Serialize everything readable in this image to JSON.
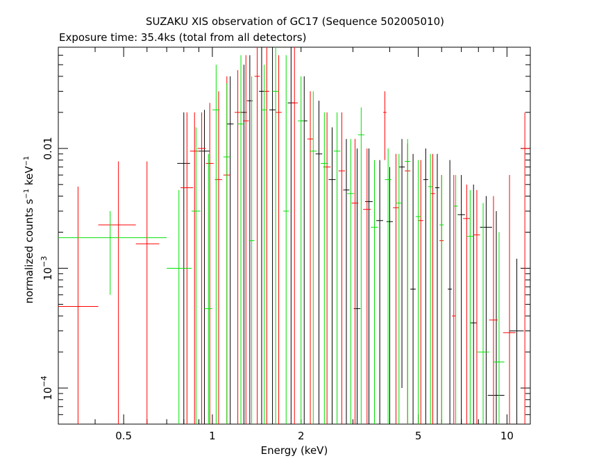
{
  "chart_data": {
    "type": "scatter",
    "title": "SUZAKU XIS observation of GC17 (Sequence 502005010)",
    "subtitle": "Exposure time: 35.4ks (total from all detectors)",
    "xlabel": "Energy (keV)",
    "ylabel": {
      "base": "normalized counts s",
      "exp1": "−1",
      "mid": " keV",
      "exp2": "−1"
    },
    "x_scale": "log",
    "y_scale": "log",
    "xlim": [
      0.3,
      12.0
    ],
    "ylim": [
      5e-05,
      0.07
    ],
    "x_ticks": [
      {
        "value": 0.5,
        "label": "0.5"
      },
      {
        "value": 1,
        "label": "1"
      },
      {
        "value": 2,
        "label": "2"
      },
      {
        "value": 5,
        "label": "5"
      },
      {
        "value": 10,
        "label": "10"
      }
    ],
    "y_ticks": [
      {
        "value": 0.0001,
        "base": "10",
        "exp": "−4"
      },
      {
        "value": 0.001,
        "base": "10",
        "exp": "−3"
      },
      {
        "value": 0.01,
        "base": "0.01",
        "exp": ""
      }
    ],
    "series": [
      {
        "color": "#000000",
        "points": [
          {
            "x": 0.8,
            "xlo": 0.76,
            "xhi": 0.84,
            "y": 0.0075,
            "ylo": 5e-05,
            "yhi": 0.02
          },
          {
            "x": 0.94,
            "xlo": 0.9,
            "xhi": 0.98,
            "y": 0.0095,
            "ylo": 5e-05,
            "yhi": 0.021
          },
          {
            "x": 1.15,
            "xlo": 1.12,
            "xhi": 1.18,
            "y": 0.016,
            "ylo": 5e-05,
            "yhi": 0.04
          },
          {
            "x": 1.28,
            "xlo": 1.25,
            "xhi": 1.31,
            "y": 0.02,
            "ylo": 5e-05,
            "yhi": 0.05
          },
          {
            "x": 1.34,
            "xlo": 1.31,
            "xhi": 1.37,
            "y": 0.025,
            "ylo": 5e-05,
            "yhi": 0.06
          },
          {
            "x": 1.47,
            "xlo": 1.44,
            "xhi": 1.5,
            "y": 0.03,
            "ylo": 5e-05,
            "yhi": 0.07
          },
          {
            "x": 1.6,
            "xlo": 1.56,
            "xhi": 1.64,
            "y": 0.021,
            "ylo": 5e-05,
            "yhi": 0.07
          },
          {
            "x": 1.85,
            "xlo": 1.8,
            "xhi": 1.9,
            "y": 0.024,
            "ylo": 5e-05,
            "yhi": 0.07
          },
          {
            "x": 2.05,
            "xlo": 2.0,
            "xhi": 2.1,
            "y": 0.017,
            "ylo": 5e-05,
            "yhi": 0.04
          },
          {
            "x": 2.3,
            "xlo": 2.24,
            "xhi": 2.36,
            "y": 0.009,
            "ylo": 5e-05,
            "yhi": 0.025
          },
          {
            "x": 2.55,
            "xlo": 2.48,
            "xhi": 2.62,
            "y": 0.0055,
            "ylo": 5e-05,
            "yhi": 0.015
          },
          {
            "x": 2.85,
            "xlo": 2.78,
            "xhi": 2.92,
            "y": 0.0045,
            "ylo": 5e-05,
            "yhi": 0.012
          },
          {
            "x": 3.1,
            "xlo": 3.02,
            "xhi": 3.18,
            "y": 0.00046,
            "ylo": 5e-05,
            "yhi": 0.01
          },
          {
            "x": 3.4,
            "xlo": 3.3,
            "xhi": 3.5,
            "y": 0.0036,
            "ylo": 5e-05,
            "yhi": 0.01
          },
          {
            "x": 3.7,
            "xlo": 3.6,
            "xhi": 3.8,
            "y": 0.0025,
            "ylo": 5e-05,
            "yhi": 0.008
          },
          {
            "x": 4.0,
            "xlo": 3.9,
            "xhi": 4.1,
            "y": 0.00245,
            "ylo": 5e-05,
            "yhi": 0.007
          },
          {
            "x": 4.4,
            "xlo": 4.3,
            "xhi": 4.5,
            "y": 0.007,
            "ylo": 0.0001,
            "yhi": 0.012
          },
          {
            "x": 4.8,
            "xlo": 4.7,
            "xhi": 4.9,
            "y": 0.00067,
            "ylo": 5e-05,
            "yhi": 0.009
          },
          {
            "x": 5.3,
            "xlo": 5.2,
            "xhi": 5.4,
            "y": 0.0055,
            "ylo": 5e-05,
            "yhi": 0.01
          },
          {
            "x": 5.8,
            "xlo": 5.7,
            "xhi": 5.9,
            "y": 0.0047,
            "ylo": 5e-05,
            "yhi": 0.009
          },
          {
            "x": 6.4,
            "xlo": 6.3,
            "xhi": 6.5,
            "y": 0.00067,
            "ylo": 5e-05,
            "yhi": 0.008
          },
          {
            "x": 7.0,
            "xlo": 6.8,
            "xhi": 7.2,
            "y": 0.0028,
            "ylo": 5e-05,
            "yhi": 0.006
          },
          {
            "x": 7.7,
            "xlo": 7.5,
            "xhi": 7.9,
            "y": 0.00035,
            "ylo": 5e-05,
            "yhi": 0.005
          },
          {
            "x": 8.5,
            "xlo": 8.1,
            "xhi": 8.9,
            "y": 0.0022,
            "ylo": 5e-05,
            "yhi": 0.004
          },
          {
            "x": 9.2,
            "xlo": 8.6,
            "xhi": 9.8,
            "y": 8.7e-05,
            "ylo": 5e-05,
            "yhi": 0.003
          },
          {
            "x": 10.8,
            "xlo": 10.2,
            "xhi": 11.4,
            "y": 0.0003,
            "ylo": 5e-05,
            "yhi": 0.0012
          }
        ]
      },
      {
        "color": "#ff0000",
        "points": [
          {
            "x": 0.35,
            "xlo": 0.3,
            "xhi": 0.41,
            "y": 0.00048,
            "ylo": 5e-05,
            "yhi": 0.0048
          },
          {
            "x": 0.48,
            "xlo": 0.41,
            "xhi": 0.55,
            "y": 0.0023,
            "ylo": 5e-05,
            "yhi": 0.0078
          },
          {
            "x": 0.6,
            "xlo": 0.55,
            "xhi": 0.66,
            "y": 0.0016,
            "ylo": 5e-05,
            "yhi": 0.0078
          },
          {
            "x": 0.82,
            "xlo": 0.78,
            "xhi": 0.86,
            "y": 0.0047,
            "ylo": 5e-05,
            "yhi": 0.02
          },
          {
            "x": 0.87,
            "xlo": 0.84,
            "xhi": 0.9,
            "y": 0.0095,
            "ylo": 5e-05,
            "yhi": 0.02
          },
          {
            "x": 0.92,
            "xlo": 0.89,
            "xhi": 0.95,
            "y": 0.01,
            "ylo": 5e-05,
            "yhi": 0.02
          },
          {
            "x": 0.98,
            "xlo": 0.95,
            "xhi": 1.01,
            "y": 0.0075,
            "ylo": 5e-05,
            "yhi": 0.024
          },
          {
            "x": 1.05,
            "xlo": 1.02,
            "xhi": 1.08,
            "y": 0.0055,
            "ylo": 5e-05,
            "yhi": 0.03
          },
          {
            "x": 1.12,
            "xlo": 1.09,
            "xhi": 1.15,
            "y": 0.006,
            "ylo": 5e-05,
            "yhi": 0.04
          },
          {
            "x": 1.22,
            "xlo": 1.19,
            "xhi": 1.25,
            "y": 0.02,
            "ylo": 5e-05,
            "yhi": 0.045
          },
          {
            "x": 1.3,
            "xlo": 1.27,
            "xhi": 1.33,
            "y": 0.017,
            "ylo": 5e-05,
            "yhi": 0.06
          },
          {
            "x": 1.42,
            "xlo": 1.39,
            "xhi": 1.45,
            "y": 0.04,
            "ylo": 5e-05,
            "yhi": 0.07
          },
          {
            "x": 1.53,
            "xlo": 1.5,
            "xhi": 1.56,
            "y": 0.03,
            "ylo": 5e-05,
            "yhi": 0.07
          },
          {
            "x": 1.68,
            "xlo": 1.64,
            "xhi": 1.72,
            "y": 0.02,
            "ylo": 5e-05,
            "yhi": 0.06
          },
          {
            "x": 1.9,
            "xlo": 1.85,
            "xhi": 1.95,
            "y": 0.024,
            "ylo": 5e-05,
            "yhi": 0.07
          },
          {
            "x": 2.15,
            "xlo": 2.1,
            "xhi": 2.2,
            "y": 0.012,
            "ylo": 5e-05,
            "yhi": 0.03
          },
          {
            "x": 2.45,
            "xlo": 2.38,
            "xhi": 2.52,
            "y": 0.007,
            "ylo": 5e-05,
            "yhi": 0.02
          },
          {
            "x": 2.75,
            "xlo": 2.68,
            "xhi": 2.82,
            "y": 0.0065,
            "ylo": 5e-05,
            "yhi": 0.02
          },
          {
            "x": 3.05,
            "xlo": 2.97,
            "xhi": 3.13,
            "y": 0.0035,
            "ylo": 5e-05,
            "yhi": 0.012
          },
          {
            "x": 3.35,
            "xlo": 3.25,
            "xhi": 3.45,
            "y": 0.0031,
            "ylo": 5e-05,
            "yhi": 0.01
          },
          {
            "x": 3.85,
            "xlo": 3.8,
            "xhi": 3.9,
            "y": 0.02,
            "ylo": 0.008,
            "yhi": 0.03
          },
          {
            "x": 4.2,
            "xlo": 4.1,
            "xhi": 4.3,
            "y": 0.0032,
            "ylo": 5e-05,
            "yhi": 0.009
          },
          {
            "x": 4.6,
            "xlo": 4.5,
            "xhi": 4.7,
            "y": 0.0065,
            "ylo": 5e-05,
            "yhi": 0.011
          },
          {
            "x": 5.1,
            "xlo": 5.0,
            "xhi": 5.2,
            "y": 0.0025,
            "ylo": 5e-05,
            "yhi": 0.008
          },
          {
            "x": 5.6,
            "xlo": 5.5,
            "xhi": 5.7,
            "y": 0.0042,
            "ylo": 5e-05,
            "yhi": 0.009
          },
          {
            "x": 6.0,
            "xlo": 5.9,
            "xhi": 6.1,
            "y": 0.0017,
            "ylo": 5e-05,
            "yhi": 0.006
          },
          {
            "x": 6.6,
            "xlo": 6.5,
            "xhi": 6.7,
            "y": 0.0004,
            "ylo": 5e-05,
            "yhi": 0.006
          },
          {
            "x": 7.3,
            "xlo": 7.1,
            "xhi": 7.5,
            "y": 0.0026,
            "ylo": 5e-05,
            "yhi": 0.005
          },
          {
            "x": 7.9,
            "xlo": 7.7,
            "xhi": 8.1,
            "y": 0.0019,
            "ylo": 5e-05,
            "yhi": 0.0045
          },
          {
            "x": 9.0,
            "xlo": 8.7,
            "xhi": 9.3,
            "y": 0.00037,
            "ylo": 5e-05,
            "yhi": 0.004
          },
          {
            "x": 10.2,
            "xlo": 9.7,
            "xhi": 10.7,
            "y": 0.00029,
            "ylo": 5e-05,
            "yhi": 0.006
          },
          {
            "x": 11.5,
            "xlo": 11.2,
            "xhi": 11.9,
            "y": 0.01,
            "ylo": 5e-05,
            "yhi": 0.02
          }
        ]
      },
      {
        "color": "#00e000",
        "points": [
          {
            "x": 0.45,
            "xlo": 0.3,
            "xhi": 0.7,
            "y": 0.0018,
            "ylo": 0.0006,
            "yhi": 0.003
          },
          {
            "x": 0.77,
            "xlo": 0.7,
            "xhi": 0.85,
            "y": 0.001,
            "ylo": 5e-05,
            "yhi": 0.0045
          },
          {
            "x": 0.88,
            "xlo": 0.85,
            "xhi": 0.91,
            "y": 0.003,
            "ylo": 5e-05,
            "yhi": 0.015
          },
          {
            "x": 0.97,
            "xlo": 0.94,
            "xhi": 1.0,
            "y": 0.00046,
            "ylo": 5e-05,
            "yhi": 0.009
          },
          {
            "x": 1.03,
            "xlo": 1.0,
            "xhi": 1.06,
            "y": 0.021,
            "ylo": 5e-05,
            "yhi": 0.05
          },
          {
            "x": 1.12,
            "xlo": 1.09,
            "xhi": 1.15,
            "y": 0.0085,
            "ylo": 5e-05,
            "yhi": 0.035
          },
          {
            "x": 1.25,
            "xlo": 1.22,
            "xhi": 1.28,
            "y": 0.016,
            "ylo": 5e-05,
            "yhi": 0.06
          },
          {
            "x": 1.36,
            "xlo": 1.33,
            "xhi": 1.39,
            "y": 0.0017,
            "ylo": 5e-05,
            "yhi": 0.04
          },
          {
            "x": 1.5,
            "xlo": 1.47,
            "xhi": 1.53,
            "y": 0.021,
            "ylo": 5e-05,
            "yhi": 0.05
          },
          {
            "x": 1.64,
            "xlo": 1.6,
            "xhi": 1.68,
            "y": 0.03,
            "ylo": 5e-05,
            "yhi": 0.07
          },
          {
            "x": 1.78,
            "xlo": 1.74,
            "xhi": 1.82,
            "y": 0.003,
            "ylo": 5e-05,
            "yhi": 0.06
          },
          {
            "x": 2.0,
            "xlo": 1.95,
            "xhi": 2.05,
            "y": 0.017,
            "ylo": 5e-05,
            "yhi": 0.04
          },
          {
            "x": 2.2,
            "xlo": 2.14,
            "xhi": 2.26,
            "y": 0.0095,
            "ylo": 5e-05,
            "yhi": 0.03
          },
          {
            "x": 2.4,
            "xlo": 2.33,
            "xhi": 2.47,
            "y": 0.0075,
            "ylo": 5e-05,
            "yhi": 0.02
          },
          {
            "x": 2.65,
            "xlo": 2.58,
            "xhi": 2.72,
            "y": 0.0095,
            "ylo": 5e-05,
            "yhi": 0.02
          },
          {
            "x": 2.95,
            "xlo": 2.87,
            "xhi": 3.03,
            "y": 0.0042,
            "ylo": 5e-05,
            "yhi": 0.012
          },
          {
            "x": 3.2,
            "xlo": 3.12,
            "xhi": 3.28,
            "y": 0.013,
            "ylo": 5e-05,
            "yhi": 0.022
          },
          {
            "x": 3.55,
            "xlo": 3.45,
            "xhi": 3.65,
            "y": 0.0022,
            "ylo": 5e-05,
            "yhi": 0.008
          },
          {
            "x": 3.95,
            "xlo": 3.85,
            "xhi": 4.05,
            "y": 0.0055,
            "ylo": 5e-05,
            "yhi": 0.01
          },
          {
            "x": 4.3,
            "xlo": 4.2,
            "xhi": 4.4,
            "y": 0.0035,
            "ylo": 5e-05,
            "yhi": 0.009
          },
          {
            "x": 4.6,
            "xlo": 4.5,
            "xhi": 4.7,
            "y": 0.0078,
            "ylo": 5e-05,
            "yhi": 0.012
          },
          {
            "x": 5.0,
            "xlo": 4.9,
            "xhi": 5.1,
            "y": 0.0027,
            "ylo": 5e-05,
            "yhi": 0.008
          },
          {
            "x": 5.5,
            "xlo": 5.4,
            "xhi": 5.6,
            "y": 0.0048,
            "ylo": 5e-05,
            "yhi": 0.009
          },
          {
            "x": 6.0,
            "xlo": 5.9,
            "xhi": 6.1,
            "y": 0.0023,
            "ylo": 5e-05,
            "yhi": 0.006
          },
          {
            "x": 6.7,
            "xlo": 6.6,
            "xhi": 6.8,
            "y": 0.0033,
            "ylo": 5e-05,
            "yhi": 0.006
          },
          {
            "x": 7.5,
            "xlo": 7.3,
            "xhi": 7.7,
            "y": 0.00185,
            "ylo": 5e-05,
            "yhi": 0.0045
          },
          {
            "x": 8.3,
            "xlo": 7.9,
            "xhi": 8.7,
            "y": 0.0002,
            "ylo": 5e-05,
            "yhi": 0.0035
          },
          {
            "x": 9.4,
            "xlo": 9.0,
            "xhi": 9.8,
            "y": 0.000165,
            "ylo": 5e-05,
            "yhi": 0.002
          }
        ]
      }
    ]
  }
}
